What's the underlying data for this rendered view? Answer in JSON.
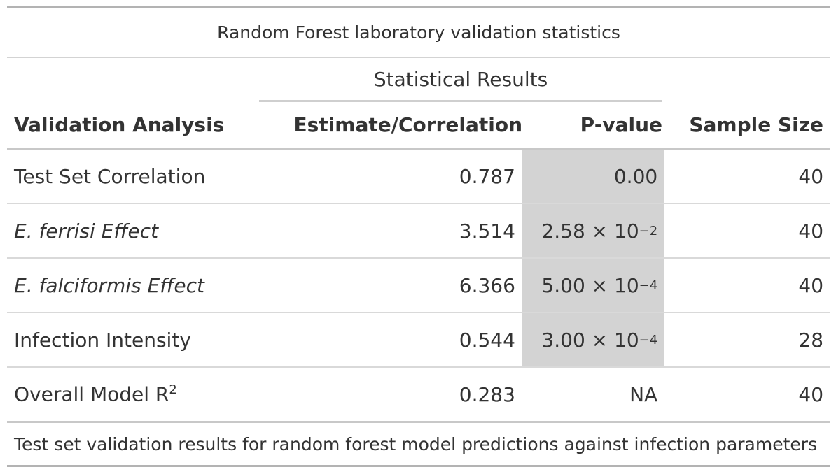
{
  "table": {
    "caption": "Random Forest laboratory validation statistics",
    "spanner": "Statistical Results",
    "headers": {
      "analysis": "Validation Analysis",
      "estimate": "Estimate/Correlation",
      "pvalue": "P-value",
      "sample": "Sample Size"
    },
    "rows": [
      {
        "analysis": "Test Set Correlation",
        "estimate": "0.787",
        "p_mantissa": "0.00",
        "p_exp": "",
        "sample": "40",
        "italic": false
      },
      {
        "analysis": "E. ferrisi Effect",
        "estimate": "3.514",
        "p_mantissa": "2.58 × 10",
        "p_exp": "−2",
        "sample": "40",
        "italic": true
      },
      {
        "analysis": "E. falciformis Effect",
        "estimate": "6.366",
        "p_mantissa": "5.00 × 10",
        "p_exp": "−4",
        "sample": "40",
        "italic": true
      },
      {
        "analysis": "Infection Intensity",
        "estimate": "0.544",
        "p_mantissa": "3.00 × 10",
        "p_exp": "−4",
        "sample": "28",
        "italic": false
      },
      {
        "analysis": "Overall Model R",
        "analysis_sup": "2",
        "estimate": "0.283",
        "p_mantissa": "NA",
        "p_exp": "",
        "sample": "40",
        "italic": false
      }
    ],
    "footnote": "Test set validation results for random forest model predictions against infection parameters",
    "highlight_color": "#d3d3d3"
  }
}
